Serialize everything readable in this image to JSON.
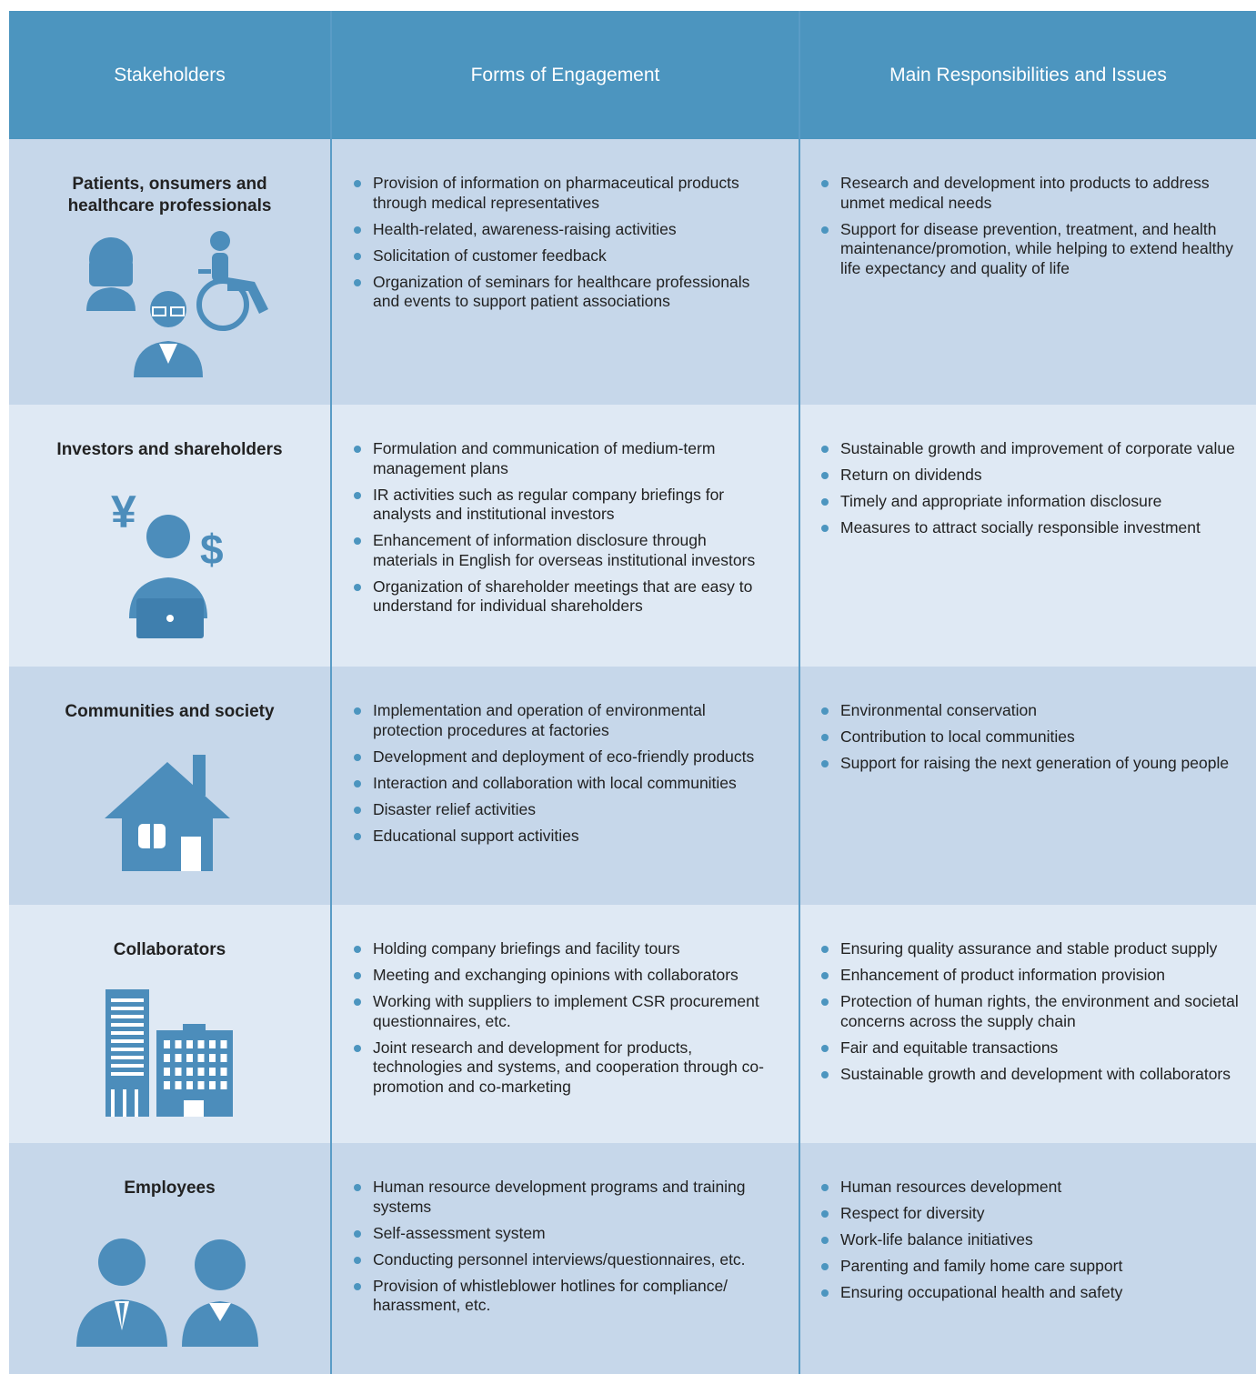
{
  "header": {
    "columns": [
      "Stakeholders",
      "Forms of Engagement",
      "Main Responsibilities and Issues"
    ]
  },
  "rows": [
    {
      "stakeholder": "Patients, onsumers and healthcare professionals",
      "engagement": [
        "Provision of information on pharmaceutical products through medical representatives",
        "Health-related, awareness-raising activities",
        "Solicitation of customer feedback",
        "Organization of seminars for healthcare professionals and events to support patient associations"
      ],
      "responsibilities": [
        "Research and development into products to address unmet medical needs",
        "Support for disease prevention, treatment, and health maintenance/promotion, while helping to extend healthy life expectancy and quality of life"
      ]
    },
    {
      "stakeholder": "Investors and shareholders",
      "engagement": [
        "Formulation and communication of medium-term management plans",
        "IR activities such as regular company briefings for analysts and institutional investors",
        "Enhancement of information disclosure through materials in English for overseas institutional investors",
        "Organization of shareholder meetings that are easy to understand for individual shareholders"
      ],
      "responsibilities": [
        "Sustainable growth and improvement of corporate value",
        "Return on dividends",
        "Timely and appropriate information disclosure",
        "Measures to attract socially responsible investment"
      ]
    },
    {
      "stakeholder": "Communities and society",
      "engagement": [
        "Implementation and operation of environmental protection procedures at factories",
        "Development and deployment of eco-friendly products",
        "Interaction and collaboration with local communities",
        "Disaster relief activities",
        "Educational support activities"
      ],
      "responsibilities": [
        "Environmental conservation",
        "Contribution to local communities",
        "Support for raising the next generation of young people"
      ]
    },
    {
      "stakeholder": "Collaborators",
      "engagement": [
        "Holding company briefings and facility tours",
        "Meeting and exchanging opinions with collaborators",
        "Working with suppliers to implement CSR procurement questionnaires, etc.",
        "Joint research and development for products, technologies and systems, and cooperation through co-promotion and co-marketing"
      ],
      "responsibilities": [
        "Ensuring quality assurance and stable product supply",
        "Enhancement of product information provision",
        "Protection of human rights, the environment and societal concerns across the supply chain",
        "Fair and equitable transactions",
        "Sustainable growth and development with collaborators"
      ]
    },
    {
      "stakeholder": "Employees",
      "engagement": [
        "Human resource development programs and training systems",
        "Self-assessment system",
        "Conducting personnel interviews/questionnaires, etc.",
        "Provision of whistleblower hotlines for compliance/ harassment, etc."
      ],
      "responsibilities": [
        "Human resources development",
        "Respect for diversity",
        "Work-life balance initiatives",
        "Parenting and family home care support",
        "Ensuring occupational health and safety"
      ]
    }
  ]
}
